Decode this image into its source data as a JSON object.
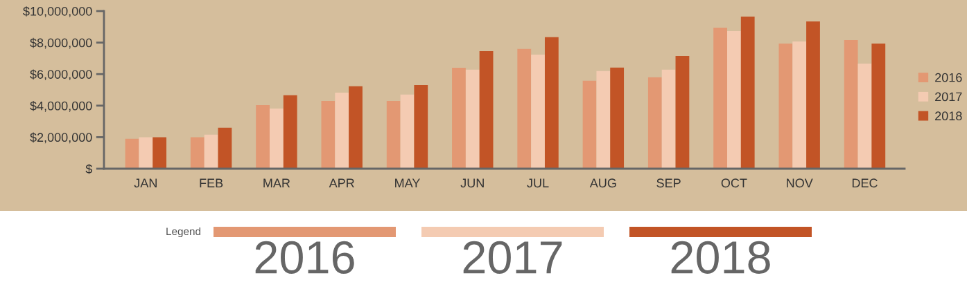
{
  "chart_data": {
    "type": "bar",
    "categories": [
      "JAN",
      "FEB",
      "MAR",
      "APR",
      "MAY",
      "JUN",
      "JUL",
      "AUG",
      "SEP",
      "OCT",
      "NOV",
      "DEC"
    ],
    "series": [
      {
        "name": "2016",
        "color": "#e39873",
        "values": [
          1900000,
          2000000,
          4040000,
          4300000,
          4300000,
          6400000,
          7600000,
          5580000,
          5800000,
          8950000,
          7940000,
          8160000
        ]
      },
      {
        "name": "2017",
        "color": "#f4cbb2",
        "values": [
          2000000,
          2160000,
          3820000,
          4830000,
          4700000,
          6280000,
          7240000,
          6190000,
          6280000,
          8730000,
          8070000,
          6670000
        ]
      },
      {
        "name": "2018",
        "color": "#c25426",
        "values": [
          2000000,
          2600000,
          4660000,
          5230000,
          5310000,
          7460000,
          8340000,
          6410000,
          7150000,
          9650000,
          9340000,
          7940000
        ]
      }
    ],
    "ylim": [
      0,
      10000000
    ],
    "yticks": [
      {
        "value": 0,
        "label": "$"
      },
      {
        "value": 2000000,
        "label": "$2,000,000"
      },
      {
        "value": 4000000,
        "label": "$4,000,000"
      },
      {
        "value": 6000000,
        "label": "$6,000,000"
      },
      {
        "value": 8000000,
        "label": "$8,000,000"
      },
      {
        "value": 10000000,
        "label": "$10,000,000"
      }
    ],
    "legend": "right",
    "legend_title": "Legend",
    "grid": false
  }
}
